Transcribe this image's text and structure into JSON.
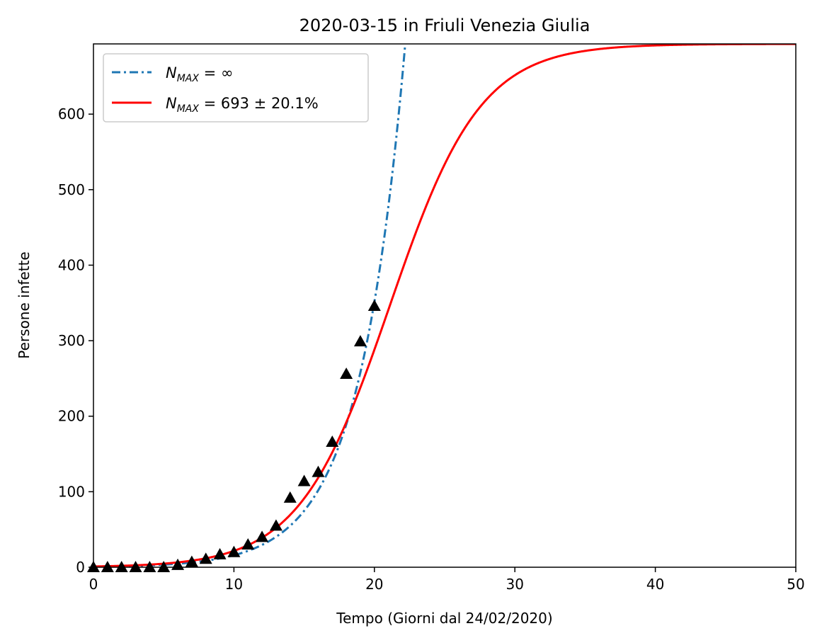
{
  "chart_data": {
    "type": "line",
    "title": "2020-03-15 in Friuli Venezia Giulia",
    "xlabel": "Tempo (Giorni dal 24/02/2020)",
    "ylabel": "Persone infette",
    "xlim": [
      0,
      50
    ],
    "ylim": [
      0,
      693
    ],
    "x_ticks": [
      0,
      10,
      20,
      30,
      40,
      50
    ],
    "y_ticks": [
      0,
      100,
      200,
      300,
      400,
      500,
      600
    ],
    "grid": false,
    "legend": {
      "placement": "top-left",
      "entries": [
        {
          "symbol": "N",
          "subscript": "MAX",
          "rest": " = ∞"
        },
        {
          "symbol": "N",
          "subscript": "MAX",
          "rest": " = 693 ± 20.1%"
        }
      ]
    },
    "series": [
      {
        "style": "dashdot",
        "color": "#1f77b4",
        "model": "exponential",
        "a": 0.72,
        "b": 0.3095
      },
      {
        "style": "solid",
        "color": "#ff0000",
        "model": "logistic",
        "K": 693,
        "r": 0.3095,
        "t0": 21.1
      },
      {
        "style": "markers",
        "marker": "triangle",
        "color": "#000000",
        "x": [
          0,
          1,
          2,
          3,
          4,
          5,
          6,
          7,
          8,
          9,
          10,
          11,
          12,
          13,
          14,
          15,
          16,
          17,
          18,
          19,
          20
        ],
        "y": [
          0,
          0,
          0,
          0,
          0,
          0,
          3,
          7,
          11,
          17,
          20,
          30,
          40,
          55,
          92,
          114,
          126,
          166,
          256,
          299,
          346
        ]
      }
    ]
  }
}
